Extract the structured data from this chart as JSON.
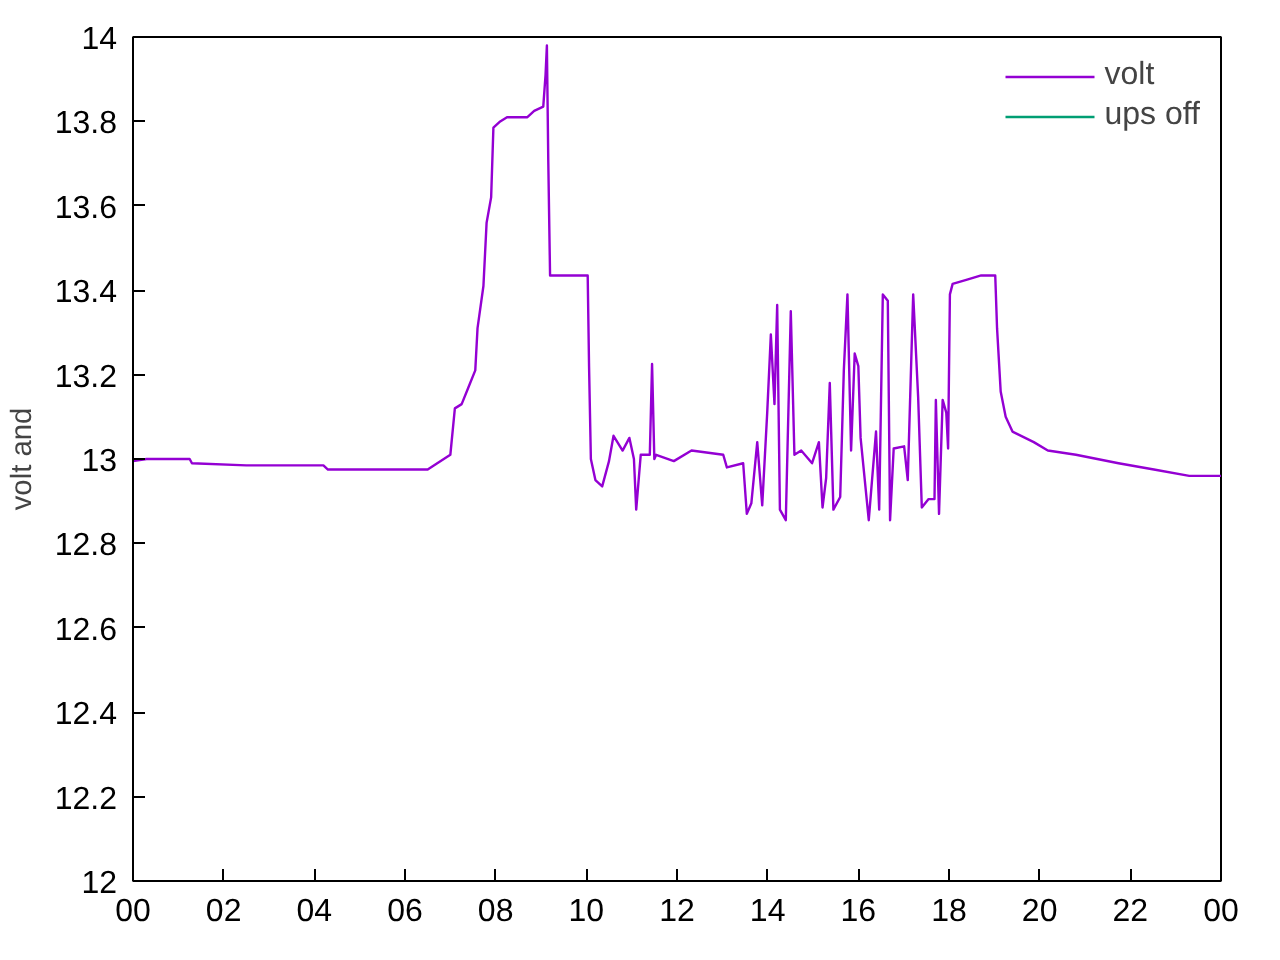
{
  "chart_data": {
    "type": "line",
    "ylabel": "volt and",
    "xlim": [
      0,
      24
    ],
    "ylim": [
      12,
      14
    ],
    "xticks": [
      {
        "value": 0,
        "label": "00"
      },
      {
        "value": 2,
        "label": "02"
      },
      {
        "value": 4,
        "label": "04"
      },
      {
        "value": 6,
        "label": "06"
      },
      {
        "value": 8,
        "label": "08"
      },
      {
        "value": 10,
        "label": "10"
      },
      {
        "value": 12,
        "label": "12"
      },
      {
        "value": 14,
        "label": "14"
      },
      {
        "value": 16,
        "label": "16"
      },
      {
        "value": 18,
        "label": "18"
      },
      {
        "value": 20,
        "label": "20"
      },
      {
        "value": 22,
        "label": "22"
      },
      {
        "value": 24,
        "label": "00"
      }
    ],
    "yticks": [
      12,
      {
        "value": 12.2,
        "label": "12.2"
      },
      {
        "value": 12.4,
        "label": "12.4"
      },
      {
        "value": 12.6,
        "label": "12.6"
      },
      {
        "value": 12.8,
        "label": "12.8"
      },
      13,
      {
        "value": 13.2,
        "label": "13.2"
      },
      {
        "value": 13.4,
        "label": "13.4"
      },
      {
        "value": 13.6,
        "label": "13.6"
      },
      {
        "value": 13.8,
        "label": "13.8"
      },
      14
    ],
    "grid": false,
    "legend": "top right",
    "series": [
      {
        "name": "volt",
        "color": "#9400d3",
        "x": [
          0,
          0.3,
          1.25,
          1.3,
          2.5,
          3.5,
          4.2,
          4.3,
          5.5,
          6.5,
          7.0,
          7.1,
          7.25,
          7.4,
          7.55,
          7.6,
          7.73,
          7.8,
          7.9,
          7.95,
          8.1,
          8.25,
          8.7,
          8.85,
          9.05,
          9.1,
          9.13,
          9.16,
          9.2,
          10.03,
          10.06,
          10.1,
          10.2,
          10.35,
          10.5,
          10.6,
          10.8,
          10.95,
          11.05,
          11.1,
          11.2,
          11.4,
          11.45,
          11.5,
          11.54,
          11.93,
          12.32,
          13.02,
          13.1,
          13.46,
          13.54,
          13.64,
          13.77,
          13.88,
          13.99,
          14.07,
          14.15,
          14.21,
          14.27,
          14.4,
          14.51,
          14.59,
          14.74,
          14.98,
          15.13,
          15.21,
          15.29,
          15.37,
          15.45,
          15.6,
          15.68,
          15.76,
          15.84,
          15.92,
          16.0,
          16.05,
          16.23,
          16.39,
          16.46,
          16.54,
          16.65,
          16.7,
          16.78,
          17.01,
          17.09,
          17.21,
          17.32,
          17.4,
          17.55,
          17.68,
          17.71,
          17.78,
          17.86,
          17.94,
          17.98,
          18.02,
          18.08,
          18.4,
          18.71,
          19.02,
          19.06,
          19.14,
          19.25,
          19.4,
          19.87,
          20.18,
          20.8,
          21.74,
          22.52,
          23.3,
          24
        ],
        "values": [
          12.995,
          13.0,
          13.0,
          12.99,
          12.985,
          12.985,
          12.985,
          12.975,
          12.975,
          12.975,
          13.01,
          13.12,
          13.13,
          13.17,
          13.21,
          13.31,
          13.41,
          13.56,
          13.62,
          13.785,
          13.8,
          13.81,
          13.81,
          13.825,
          13.835,
          13.91,
          13.98,
          13.71,
          13.435,
          13.435,
          13.22,
          13.0,
          12.95,
          12.935,
          12.995,
          13.055,
          13.02,
          13.05,
          13.0,
          12.88,
          13.01,
          13.01,
          13.225,
          13.0,
          13.01,
          12.995,
          13.02,
          13.01,
          12.98,
          12.99,
          12.87,
          12.895,
          13.04,
          12.89,
          13.11,
          13.295,
          13.13,
          13.365,
          12.88,
          12.855,
          13.35,
          13.01,
          13.02,
          12.99,
          13.04,
          12.885,
          12.955,
          13.18,
          12.88,
          12.91,
          13.21,
          13.39,
          13.02,
          13.25,
          13.22,
          13.05,
          12.855,
          13.065,
          12.88,
          13.39,
          13.375,
          12.855,
          13.025,
          13.03,
          12.95,
          13.39,
          13.145,
          12.885,
          12.905,
          12.905,
          13.14,
          12.87,
          13.14,
          13.11,
          13.025,
          13.39,
          13.415,
          13.425,
          13.435,
          13.435,
          13.31,
          13.16,
          13.1,
          13.065,
          13.04,
          13.02,
          13.01,
          12.99,
          12.975,
          12.96,
          12.96
        ]
      },
      {
        "name": "ups off",
        "color": "#009e73"
      }
    ]
  }
}
